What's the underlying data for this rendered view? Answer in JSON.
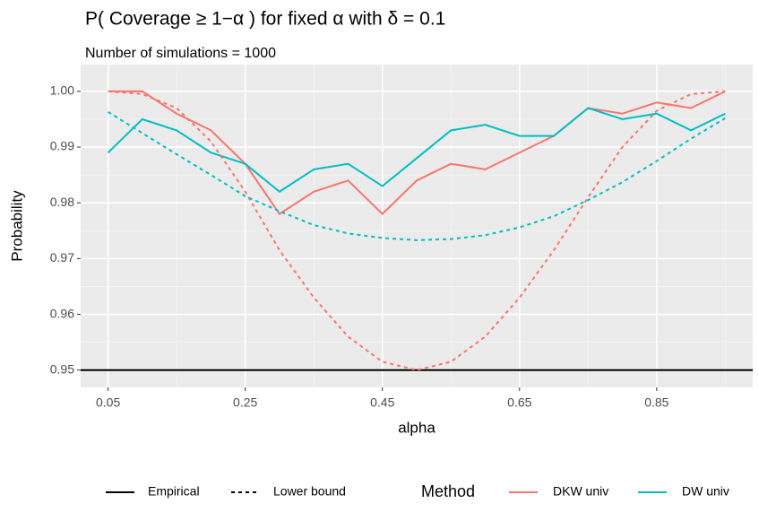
{
  "chart_data": {
    "type": "line",
    "title": "P( Coverage ≥ 1−α ) for fixed α with δ = 0.1",
    "subtitle": "Number of simulations = 1000",
    "x_label": "alpha",
    "y_label": "Probability",
    "x": [
      0.05,
      0.1,
      0.15,
      0.2,
      0.25,
      0.3,
      0.35,
      0.4,
      0.45,
      0.5,
      0.55,
      0.6,
      0.65,
      0.7,
      0.75,
      0.8,
      0.85,
      0.9,
      0.95
    ],
    "xlim": [
      0.01,
      0.99
    ],
    "xticks": [
      0.05,
      0.25,
      0.45,
      0.65,
      0.85
    ],
    "x_minor": [
      0.15,
      0.35,
      0.55,
      0.75,
      0.95
    ],
    "ylim": [
      0.9469,
      1.0048
    ],
    "yticks": [
      0.95,
      0.96,
      0.97,
      0.98,
      0.99,
      {
        "value": 1,
        "label": "1.00"
      }
    ],
    "y_minor": [
      0.955,
      0.965,
      0.975,
      0.985,
      0.995
    ],
    "grid": true,
    "hline": {
      "value": 0.95,
      "color": "#000000",
      "linetype": "Empirical"
    },
    "linetype_legend": [
      {
        "label": "Empirical",
        "dash": "solid"
      },
      {
        "label": "Lower bound",
        "dash": "dashed"
      }
    ],
    "color_legend": {
      "title": "Method",
      "items": [
        {
          "label": "DKW univ",
          "color": "#f8766d"
        },
        {
          "label": "DW univ",
          "color": "#00bfc4"
        }
      ]
    },
    "legend": "bottom",
    "series": [
      {
        "method": "DKW univ",
        "linetype": "Empirical",
        "values": [
          1.0,
          1.0,
          0.996,
          0.993,
          0.987,
          0.978,
          0.982,
          0.984,
          0.978,
          0.984,
          0.987,
          0.986,
          0.989,
          0.992,
          0.997,
          0.996,
          0.998,
          0.997,
          1.0
        ]
      },
      {
        "method": "DW univ",
        "linetype": "Empirical",
        "values": [
          0.989,
          0.995,
          0.993,
          0.989,
          0.987,
          0.982,
          0.986,
          0.987,
          0.983,
          0.988,
          0.993,
          0.994,
          0.992,
          0.992,
          0.997,
          0.995,
          0.996,
          0.993,
          0.996
        ]
      },
      {
        "method": "DKW univ",
        "linetype": "Lower bound",
        "values": [
          1.0,
          0.9995,
          0.997,
          0.991,
          0.982,
          0.9715,
          0.963,
          0.956,
          0.9515,
          0.95,
          0.9515,
          0.956,
          0.963,
          0.9715,
          0.981,
          0.99,
          0.9965,
          0.9995,
          1.0
        ]
      },
      {
        "method": "DW univ",
        "linetype": "Lower bound",
        "values": [
          0.9963,
          0.9925,
          0.9887,
          0.985,
          0.9812,
          0.9785,
          0.976,
          0.9745,
          0.9737,
          0.9733,
          0.9735,
          0.9742,
          0.9756,
          0.9776,
          0.9805,
          0.9837,
          0.9875,
          0.9915,
          0.9952
        ]
      }
    ]
  }
}
